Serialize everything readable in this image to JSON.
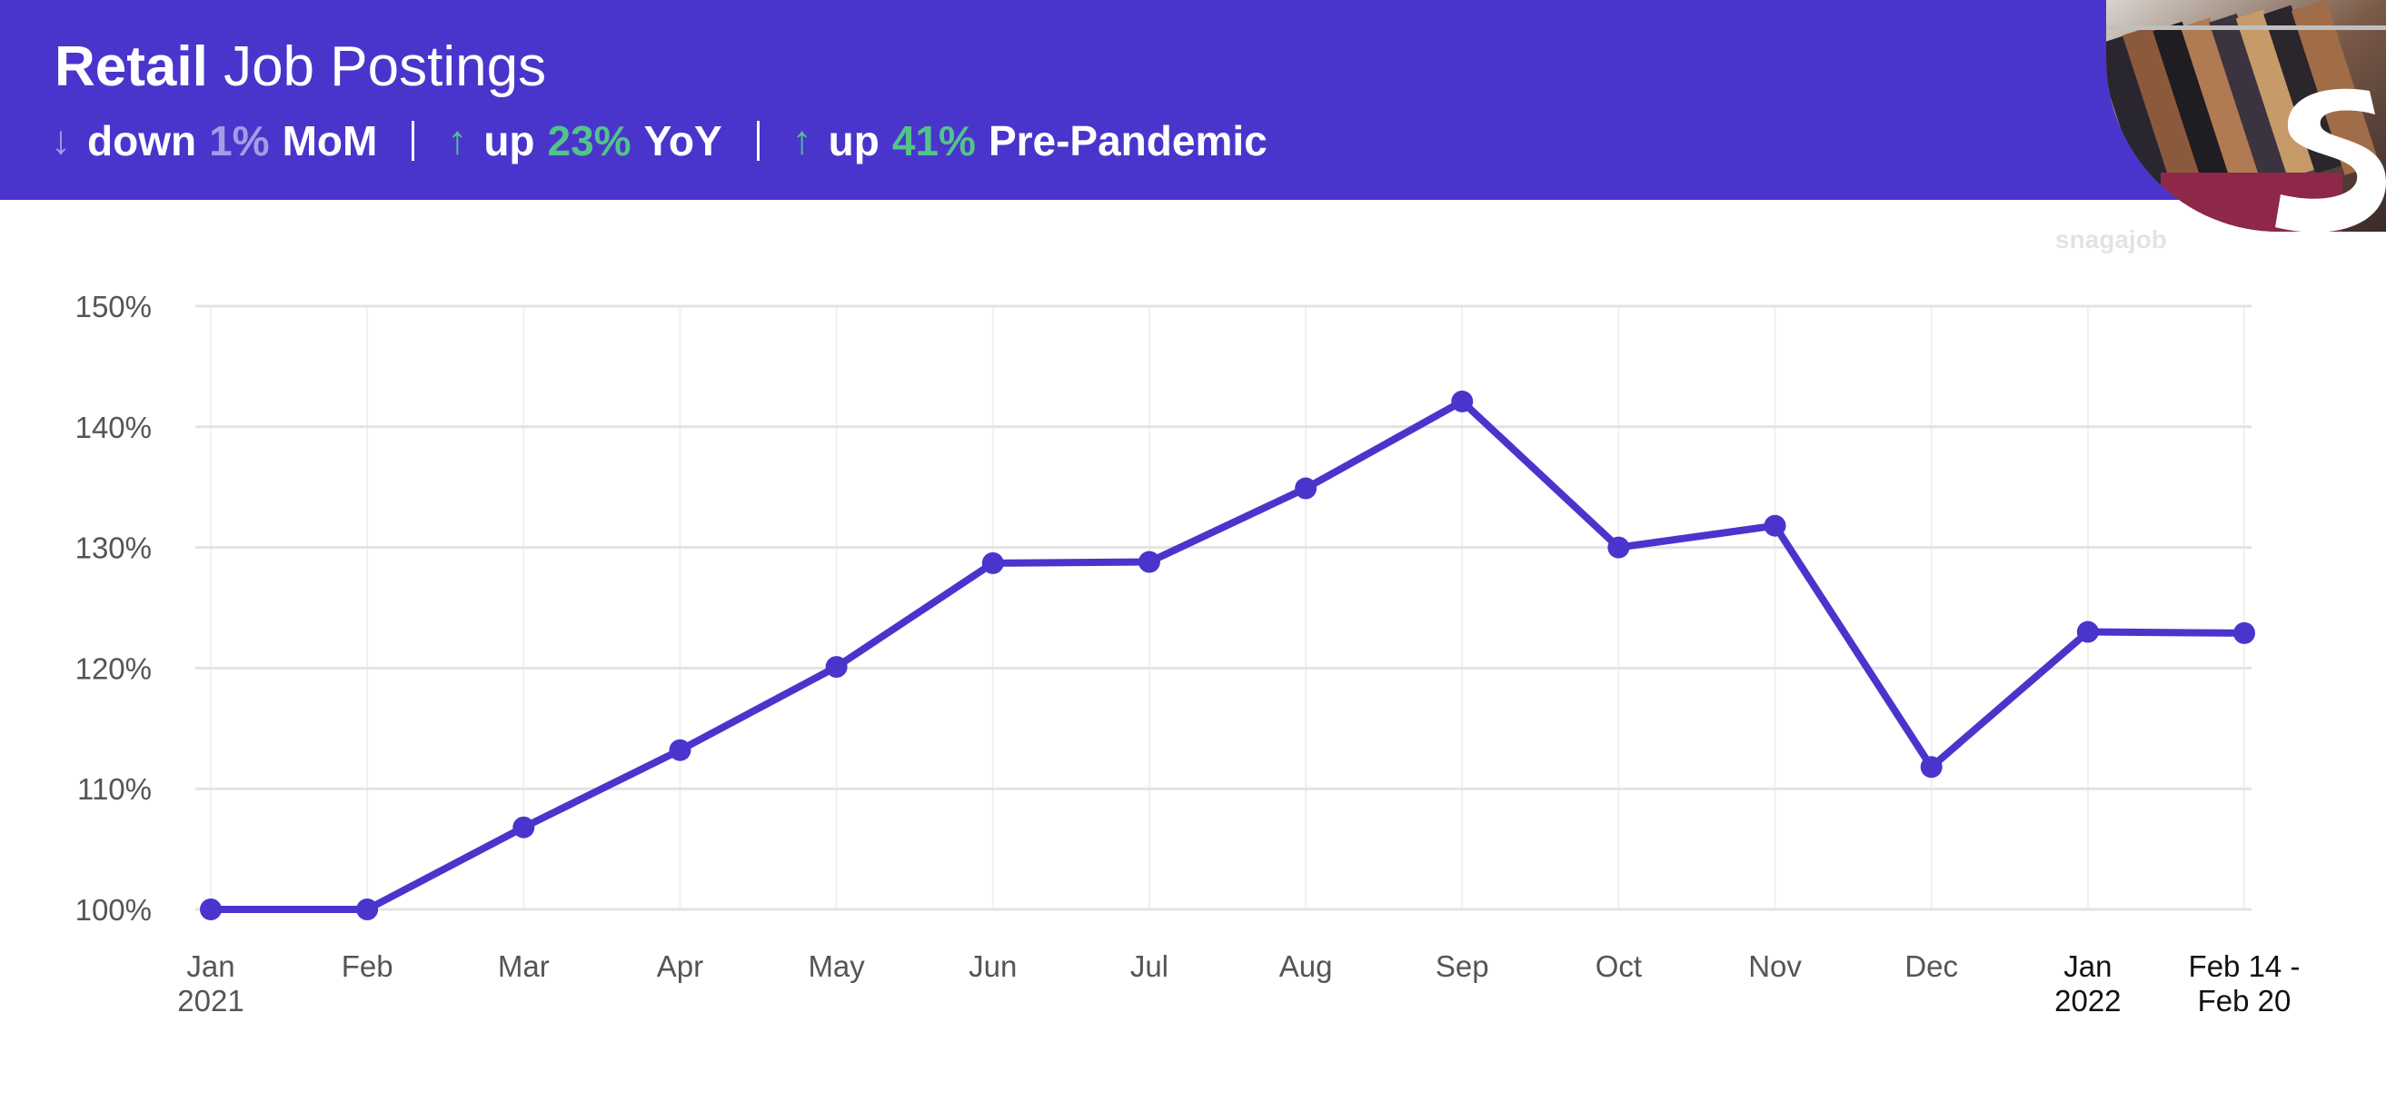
{
  "header": {
    "title_bold": "Retail",
    "title_light": "Job Postings",
    "stats": [
      {
        "direction": "down",
        "arrow": "↓",
        "word": "down",
        "pct": "1%",
        "label": "MoM"
      },
      {
        "direction": "up",
        "arrow": "↑",
        "word": "up",
        "pct": "23%",
        "label": "YoY"
      },
      {
        "direction": "up",
        "arrow": "↑",
        "word": "up",
        "pct": "41%",
        "label": "Pre-Pandemic"
      }
    ]
  },
  "brand": {
    "watermark": "snagajob",
    "accent": "#4a35cc",
    "up_color": "#52c48a",
    "down_color": "#a49ce4"
  },
  "chart_data": {
    "type": "line",
    "title": "Retail Job Postings",
    "xlabel": "",
    "ylabel": "",
    "ylim": [
      100,
      150
    ],
    "yticks": [
      100,
      110,
      120,
      130,
      140,
      150
    ],
    "ytick_suffix": "%",
    "grid": true,
    "categories": [
      {
        "line1": "Jan",
        "line2": "2021",
        "highlight": false
      },
      {
        "line1": "Feb",
        "line2": "",
        "highlight": false
      },
      {
        "line1": "Mar",
        "line2": "",
        "highlight": false
      },
      {
        "line1": "Apr",
        "line2": "",
        "highlight": false
      },
      {
        "line1": "May",
        "line2": "",
        "highlight": false
      },
      {
        "line1": "Jun",
        "line2": "",
        "highlight": false
      },
      {
        "line1": "Jul",
        "line2": "",
        "highlight": false
      },
      {
        "line1": "Aug",
        "line2": "",
        "highlight": false
      },
      {
        "line1": "Sep",
        "line2": "",
        "highlight": false
      },
      {
        "line1": "Oct",
        "line2": "",
        "highlight": false
      },
      {
        "line1": "Nov",
        "line2": "",
        "highlight": false
      },
      {
        "line1": "Dec",
        "line2": "",
        "highlight": false
      },
      {
        "line1": "Jan",
        "line2": "2022",
        "highlight": true
      },
      {
        "line1": "Feb 14 -",
        "line2": "Feb 20",
        "highlight": true
      }
    ],
    "series": [
      {
        "name": "Retail Job Postings",
        "color": "#4a35cc",
        "values": [
          100,
          100,
          106.8,
          113.2,
          120.1,
          128.7,
          128.8,
          134.9,
          142.1,
          130.0,
          131.8,
          111.8,
          123.0,
          122.9
        ]
      }
    ]
  }
}
